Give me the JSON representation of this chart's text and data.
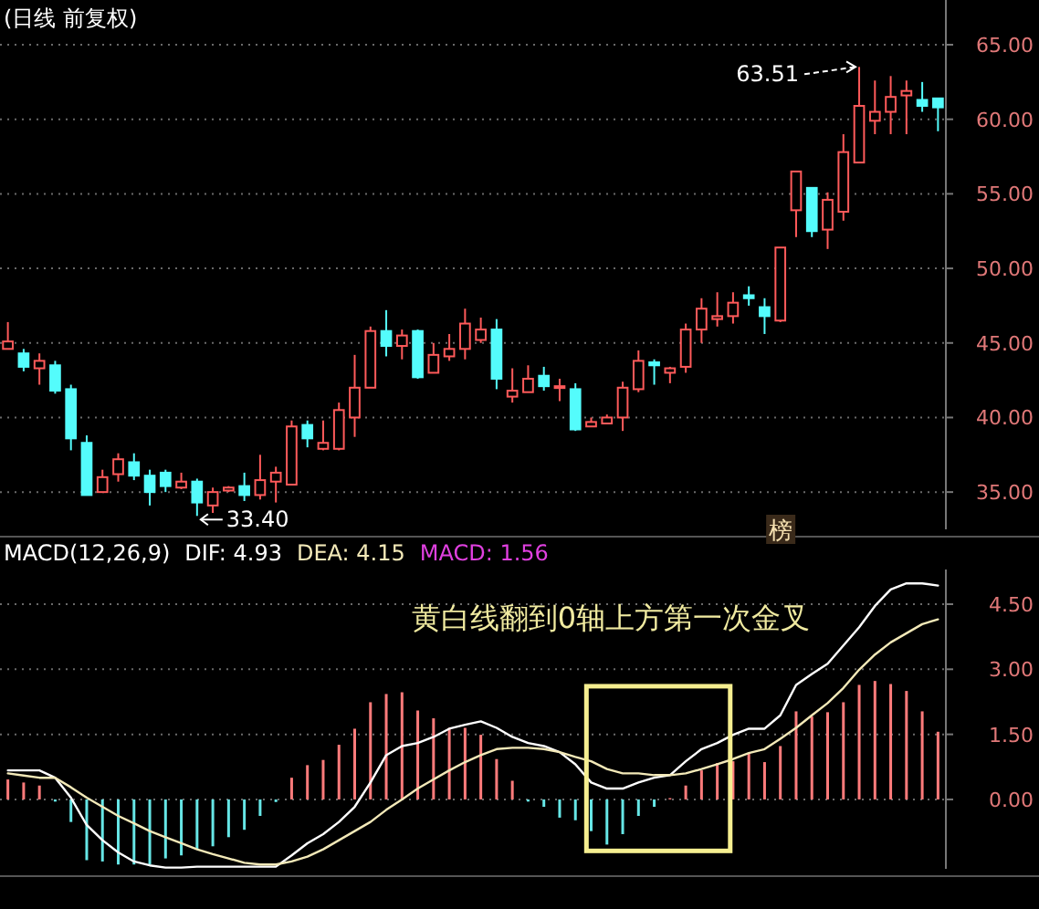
{
  "chart_data": [
    {
      "type": "candlestick",
      "title": "(日线 前复权)",
      "categories": [
        null,
        null,
        null,
        null,
        null,
        null,
        null,
        null,
        null,
        null,
        null,
        null,
        null,
        null,
        null,
        null,
        null,
        null,
        null,
        null,
        null,
        null,
        null,
        null,
        null,
        null,
        null,
        null,
        null,
        null,
        null,
        null,
        null,
        null,
        null,
        null,
        null,
        null,
        null,
        null,
        null,
        null,
        null,
        null,
        null,
        null,
        null,
        null,
        null,
        null,
        null,
        null,
        null,
        null,
        null,
        null,
        null,
        null,
        null,
        null
      ],
      "ohlc": [
        [
          44.6,
          46.4,
          44.6,
          45.1
        ],
        [
          44.3,
          44.6,
          43.1,
          43.4
        ],
        [
          43.3,
          44.3,
          42.2,
          43.8
        ],
        [
          43.5,
          43.8,
          41.6,
          41.8
        ],
        [
          41.9,
          42.2,
          37.8,
          38.6
        ],
        [
          38.3,
          38.8,
          34.8,
          34.8
        ],
        [
          35.0,
          36.5,
          35.0,
          36.0
        ],
        [
          36.2,
          37.6,
          35.7,
          37.2
        ],
        [
          37.0,
          37.6,
          35.8,
          36.1
        ],
        [
          36.1,
          36.5,
          34.1,
          35.0
        ],
        [
          36.3,
          36.5,
          35.0,
          35.4
        ],
        [
          35.3,
          36.3,
          35.2,
          35.7
        ],
        [
          35.7,
          35.9,
          33.4,
          34.3
        ],
        [
          34.1,
          35.3,
          33.6,
          35.0
        ],
        [
          35.1,
          35.4,
          35.0,
          35.3
        ],
        [
          35.4,
          36.3,
          34.4,
          34.8
        ],
        [
          34.8,
          37.5,
          34.5,
          35.8
        ],
        [
          35.7,
          36.7,
          34.3,
          36.3
        ],
        [
          35.5,
          39.8,
          35.5,
          39.4
        ],
        [
          39.5,
          39.8,
          38.0,
          38.6
        ],
        [
          37.9,
          39.8,
          37.8,
          38.3
        ],
        [
          37.9,
          41.0,
          37.8,
          40.5
        ],
        [
          40.0,
          44.2,
          38.7,
          42.0
        ],
        [
          42.0,
          46.1,
          42.0,
          45.8
        ],
        [
          45.8,
          47.2,
          44.1,
          44.8
        ],
        [
          44.8,
          45.9,
          43.9,
          45.5
        ],
        [
          45.8,
          45.9,
          42.6,
          42.7
        ],
        [
          43.0,
          45.0,
          43.0,
          44.2
        ],
        [
          44.1,
          45.6,
          43.8,
          44.6
        ],
        [
          44.6,
          47.3,
          43.9,
          46.3
        ],
        [
          45.2,
          46.7,
          45.0,
          45.9
        ],
        [
          45.9,
          46.6,
          41.9,
          42.6
        ],
        [
          41.4,
          43.3,
          41.0,
          41.8
        ],
        [
          41.7,
          43.5,
          41.7,
          42.6
        ],
        [
          42.8,
          43.4,
          41.8,
          42.1
        ],
        [
          42.0,
          42.6,
          41.1,
          42.1
        ],
        [
          41.9,
          42.3,
          39.1,
          39.2
        ],
        [
          39.4,
          40.0,
          39.4,
          39.7
        ],
        [
          39.6,
          40.2,
          39.6,
          40.0
        ],
        [
          40.0,
          42.4,
          39.1,
          42.0
        ],
        [
          41.9,
          44.5,
          41.7,
          43.8
        ],
        [
          43.7,
          43.9,
          42.2,
          43.5
        ],
        [
          43.0,
          43.4,
          42.3,
          43.3
        ],
        [
          43.4,
          46.3,
          43.0,
          45.9
        ],
        [
          45.9,
          48.0,
          45.0,
          47.3
        ],
        [
          46.6,
          48.4,
          46.1,
          46.8
        ],
        [
          46.8,
          48.4,
          46.3,
          47.7
        ],
        [
          48.2,
          48.8,
          47.5,
          48.0
        ],
        [
          47.4,
          48.0,
          45.6,
          46.8
        ],
        [
          46.5,
          51.4,
          46.4,
          51.4
        ],
        [
          53.9,
          56.5,
          52.1,
          56.5
        ],
        [
          55.4,
          55.4,
          52.1,
          52.5
        ],
        [
          52.6,
          55.1,
          51.3,
          54.6
        ],
        [
          53.8,
          59.0,
          53.2,
          57.8
        ],
        [
          57.1,
          63.51,
          57.1,
          60.9
        ],
        [
          59.9,
          62.6,
          59.0,
          60.5
        ],
        [
          60.5,
          62.9,
          59.0,
          61.5
        ],
        [
          61.6,
          62.6,
          59.0,
          61.9
        ],
        [
          61.3,
          62.5,
          60.5,
          60.9
        ],
        [
          61.4,
          61.4,
          59.2,
          60.8
        ]
      ],
      "colors": [
        "#ff5a5a",
        "#54fcfc",
        "#ff5a5a",
        "#54fcfc",
        "#54fcfc",
        "#54fcfc",
        "#ff5a5a",
        "#ff5a5a",
        "#54fcfc",
        "#54fcfc",
        "#54fcfc",
        "#ff5a5a",
        "#54fcfc",
        "#ff5a5a",
        "#ff5a5a",
        "#54fcfc",
        "#ff5a5a",
        "#ff5a5a",
        "#ff5a5a",
        "#54fcfc",
        "#ff5a5a",
        "#ff5a5a",
        "#ff5a5a",
        "#ff5a5a",
        "#54fcfc",
        "#ff5a5a",
        "#54fcfc",
        "#ff5a5a",
        "#ff5a5a",
        "#ff5a5a",
        "#ff5a5a",
        "#54fcfc",
        "#ff5a5a",
        "#ff5a5a",
        "#54fcfc",
        "#ff5a5a",
        "#54fcfc",
        "#ff5a5a",
        "#ff5a5a",
        "#ff5a5a",
        "#ff5a5a",
        "#54fcfc",
        "#ff5a5a",
        "#ff5a5a",
        "#ff5a5a",
        "#ff5a5a",
        "#ff5a5a",
        "#54fcfc",
        "#54fcfc",
        "#ff5a5a",
        "#ff5a5a",
        "#54fcfc",
        "#ff5a5a",
        "#ff5a5a",
        "#ff5a5a",
        "#ff5a5a",
        "#ff5a5a",
        "#ff5a5a",
        "#54fcfc",
        "#54fcfc"
      ],
      "ylim": [
        32.5,
        68
      ],
      "yticks": [
        {
          "value": 35,
          "label": "35.00"
        },
        {
          "value": 40,
          "label": "40.00"
        },
        {
          "value": 45,
          "label": "45.00"
        },
        {
          "value": 50,
          "label": "50.00"
        },
        {
          "value": 55,
          "label": "55.00"
        },
        {
          "value": 60,
          "label": "60.00"
        },
        {
          "value": 65,
          "label": "65.00"
        }
      ],
      "grid": "y",
      "tick_labels": "y",
      "annotations": [
        "33.40",
        "63.51",
        "榜"
      ]
    },
    {
      "type": "bar",
      "title": "MACD(12,26,9)",
      "categories": [
        null,
        null,
        null,
        null,
        null,
        null,
        null,
        null,
        null,
        null,
        null,
        null,
        null,
        null,
        null,
        null,
        null,
        null,
        null,
        null,
        null,
        null,
        null,
        null,
        null,
        null,
        null,
        null,
        null,
        null,
        null,
        null,
        null,
        null,
        null,
        null,
        null,
        null,
        null,
        null,
        null,
        null,
        null,
        null,
        null,
        null,
        null,
        null,
        null,
        null,
        null,
        null,
        null,
        null,
        null,
        null,
        null,
        null,
        null,
        null
      ],
      "series": [
        {
          "type": "bar",
          "colors": [
            "#ff7b7b",
            "#ff7b7b",
            "#ff7b7b",
            "#66e6e6",
            "#66e6e6",
            "#66e6e6",
            "#66e6e6",
            "#66e6e6",
            "#66e6e6",
            "#66e6e6",
            "#66e6e6",
            "#66e6e6",
            "#66e6e6",
            "#66e6e6",
            "#66e6e6",
            "#66e6e6",
            "#66e6e6",
            "#66e6e6",
            "#ff7b7b",
            "#ff7b7b",
            "#ff7b7b",
            "#ff7b7b",
            "#ff7b7b",
            "#ff7b7b",
            "#ff7b7b",
            "#ff7b7b",
            "#ff7b7b",
            "#ff7b7b",
            "#ff7b7b",
            "#ff7b7b",
            "#ff7b7b",
            "#ff7b7b",
            "#ff7b7b",
            "#66e6e6",
            "#66e6e6",
            "#66e6e6",
            "#66e6e6",
            "#66e6e6",
            "#66e6e6",
            "#66e6e6",
            "#66e6e6",
            "#66e6e6",
            "#ff7b7b",
            "#ff7b7b",
            "#ff7b7b",
            "#ff7b7b",
            "#ff7b7b",
            "#ff7b7b",
            "#ff7b7b",
            "#ff7b7b",
            "#ff7b7b",
            "#ff7b7b",
            "#ff7b7b",
            "#ff7b7b",
            "#ff7b7b",
            "#ff7b7b",
            "#ff7b7b",
            "#ff7b7b",
            "#ff7b7b",
            "#ff7b7b"
          ],
          "values": [
            0.46,
            0.39,
            0.32,
            -0.05,
            -0.52,
            -1.4,
            -1.43,
            -1.5,
            -1.5,
            -1.5,
            -1.36,
            -1.29,
            -1.15,
            -1.08,
            -0.87,
            -0.7,
            -0.38,
            -0.06,
            0.5,
            0.79,
            0.91,
            1.26,
            1.63,
            2.24,
            2.43,
            2.47,
            2.05,
            1.87,
            1.65,
            1.65,
            1.49,
            0.93,
            0.43,
            -0.05,
            -0.17,
            -0.42,
            -0.48,
            -0.73,
            -1.04,
            -0.8,
            -0.38,
            -0.17,
            0.03,
            0.32,
            0.67,
            0.84,
            0.88,
            1.07,
            0.86,
            1.23,
            2.03,
            1.91,
            2.01,
            2.24,
            2.64,
            2.73,
            2.66,
            2.5,
            2.03,
            1.56
          ]
        },
        {
          "type": "line",
          "color": "#ffffff",
          "values": [
            0.67,
            0.67,
            0.67,
            0.5,
            0.04,
            -0.59,
            -0.94,
            -1.22,
            -1.43,
            -1.52,
            -1.57,
            -1.57,
            -1.55,
            -1.55,
            -1.55,
            -1.55,
            -1.55,
            -1.55,
            -1.29,
            -1.01,
            -0.8,
            -0.52,
            -0.17,
            0.39,
            1.02,
            1.23,
            1.3,
            1.44,
            1.63,
            1.72,
            1.8,
            1.65,
            1.44,
            1.3,
            1.23,
            1.09,
            0.81,
            0.39,
            0.25,
            0.25,
            0.39,
            0.5,
            0.56,
            0.88,
            1.16,
            1.3,
            1.49,
            1.63,
            1.63,
            1.94,
            2.64,
            2.89,
            3.13,
            3.55,
            3.97,
            4.46,
            4.84,
            4.98,
            4.98,
            4.93
          ]
        },
        {
          "type": "line",
          "color": "#f3e9b8",
          "values": [
            0.6,
            0.55,
            0.5,
            0.5,
            0.28,
            0.04,
            -0.17,
            -0.38,
            -0.55,
            -0.73,
            -0.87,
            -1.01,
            -1.15,
            -1.26,
            -1.36,
            -1.46,
            -1.5,
            -1.5,
            -1.43,
            -1.32,
            -1.15,
            -0.94,
            -0.73,
            -0.52,
            -0.24,
            0.0,
            0.25,
            0.46,
            0.67,
            0.86,
            1.02,
            1.16,
            1.19,
            1.19,
            1.16,
            1.09,
            0.98,
            0.88,
            0.7,
            0.6,
            0.6,
            0.56,
            0.56,
            0.6,
            0.7,
            0.81,
            0.93,
            1.07,
            1.16,
            1.4,
            1.65,
            1.94,
            2.22,
            2.57,
            2.99,
            3.34,
            3.62,
            3.83,
            4.04,
            4.15
          ]
        }
      ],
      "ylim": [
        -1.6,
        5.3
      ],
      "yticks": [
        {
          "value": 0,
          "label": "0.00"
        },
        {
          "value": 1.5,
          "label": "1.50"
        },
        {
          "value": 3,
          "label": "3.00"
        },
        {
          "value": 4.5,
          "label": "4.50"
        }
      ],
      "grid": "y",
      "tick_labels": "y",
      "annotations": [
        "DIF: 4.93",
        "DEA: 4.15",
        "MACD: 1.56",
        "黄白线翻到0轴上方第一次金叉"
      ]
    }
  ]
}
